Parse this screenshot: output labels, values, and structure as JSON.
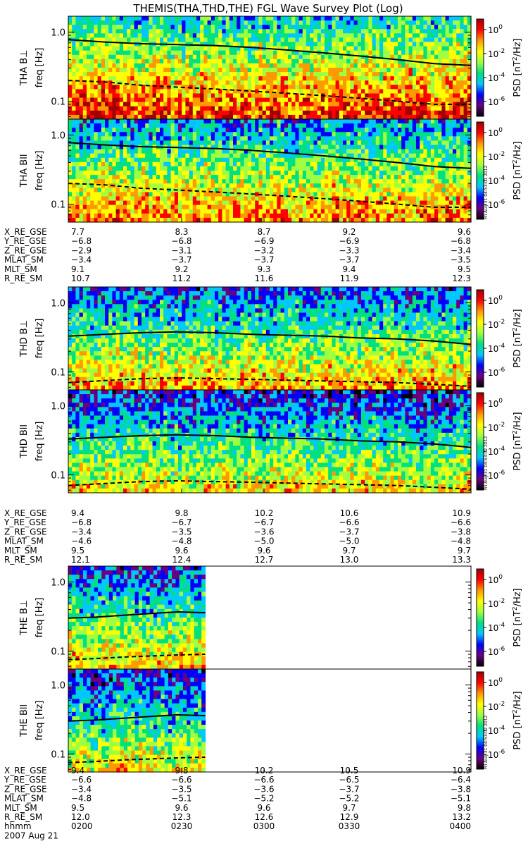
{
  "chart_data": {
    "type": "heatmap",
    "title": "THEMIS(THA,THD,THE) FGL Wave Survey Plot (Log)",
    "date_label": "2007 Aug 21",
    "freq_axis": {
      "label": "freq [Hz]",
      "scale": "log",
      "ticks": [
        "1.0",
        "0.1"
      ],
      "range_hz": [
        0.055,
        1.7
      ]
    },
    "colorbar": {
      "label": "PSD [nT²/Hz]",
      "label_parts": [
        "PSD [nT",
        "2",
        "/Hz]"
      ],
      "scale": "log",
      "ticks": [
        {
          "base": "10",
          "exp": "0"
        },
        {
          "base": "10",
          "exp": "-2"
        },
        {
          "base": "10",
          "exp": "-4"
        },
        {
          "base": "10",
          "exp": "-6"
        }
      ],
      "colors": [
        "#000000",
        "#6a0080",
        "#0000ff",
        "#00c8ff",
        "#00e080",
        "#a0ff40",
        "#ffff00",
        "#ff9900",
        "#ff0000",
        "#a00000"
      ],
      "stamps": [
        "Fri Aug 31 04:53:01 2012",
        "Fri Aug 31 04:53:02 2012",
        "Fri Aug 31 04:53:02 2012"
      ]
    },
    "time_axis": {
      "hhmm_label": "hhmm",
      "hhmm": [
        "0200",
        "0230",
        "0300",
        "0330",
        "0400"
      ]
    },
    "probes": [
      {
        "panels": [
          {
            "label_main": "THA B",
            "label_sym": "⊥",
            "intensity": 0.72,
            "solid_line_hz": [
              0.78,
              0.72,
              0.68,
              0.66,
              0.64,
              0.6,
              0.55,
              0.5,
              0.45,
              0.4,
              0.35,
              0.33
            ],
            "dashed_line_hz": [
              0.2,
              0.19,
              0.17,
              0.16,
              0.15,
              0.14,
              0.13,
              0.12,
              0.11,
              0.1,
              0.09,
              0.09
            ]
          },
          {
            "label_main": "THA B",
            "label_sym": "ll",
            "intensity": 0.58,
            "solid_line_hz": [
              0.78,
              0.72,
              0.68,
              0.66,
              0.64,
              0.6,
              0.55,
              0.5,
              0.45,
              0.4,
              0.35,
              0.33
            ],
            "dashed_line_hz": [
              0.2,
              0.19,
              0.17,
              0.16,
              0.15,
              0.14,
              0.13,
              0.12,
              0.11,
              0.1,
              0.09,
              0.09
            ]
          }
        ],
        "ephemeris": [
          {
            "name": "X_RE_GSE",
            "values": [
              "7.7",
              "8.3",
              "8.7",
              "9.2",
              "9.6"
            ]
          },
          {
            "name": "Y_RE_GSE",
            "values": [
              "−6.8",
              "−6.8",
              "−6.9",
              "−6.9",
              "−6.8"
            ]
          },
          {
            "name": "Z_RE_GSE",
            "values": [
              "−2.9",
              "−3.1",
              "−3.2",
              "−3.3",
              "−3.4"
            ]
          },
          {
            "name": "MLAT_SM",
            "values": [
              "−3.4",
              "−3.7",
              "−3.7",
              "−3.7",
              "−3.5"
            ]
          },
          {
            "name": "MLT_SM",
            "values": [
              "9.1",
              "9.2",
              "9.3",
              "9.4",
              "9.5"
            ]
          },
          {
            "name": "R_RE_SM",
            "values": [
              "10.7",
              "11.2",
              "11.6",
              "11.9",
              "12.3"
            ]
          }
        ]
      },
      {
        "panels": [
          {
            "label_main": "THD B",
            "label_sym": "⊥",
            "intensity": 0.5,
            "solid_line_hz": [
              0.33,
              0.35,
              0.37,
              0.38,
              0.37,
              0.35,
              0.34,
              0.33,
              0.31,
              0.3,
              0.28,
              0.25
            ],
            "dashed_line_hz": [
              0.07,
              0.075,
              0.08,
              0.082,
              0.08,
              0.078,
              0.076,
              0.074,
              0.072,
              0.07,
              0.066,
              0.062
            ]
          },
          {
            "label_main": "THD B",
            "label_sym": "ll",
            "intensity": 0.4,
            "solid_line_hz": [
              0.33,
              0.35,
              0.37,
              0.38,
              0.37,
              0.35,
              0.34,
              0.33,
              0.31,
              0.3,
              0.28,
              0.25
            ],
            "dashed_line_hz": [
              0.07,
              0.075,
              0.08,
              0.082,
              0.08,
              0.078,
              0.076,
              0.074,
              0.072,
              0.07,
              0.066,
              0.062
            ]
          }
        ],
        "ephemeris": [
          {
            "name": "X_RE_GSE",
            "values": [
              "9.4",
              "9.8",
              "10.2",
              "10.6",
              "10.9"
            ]
          },
          {
            "name": "Y_RE_GSE",
            "values": [
              "−6.8",
              "−6.7",
              "−6.7",
              "−6.6",
              "−6.6"
            ]
          },
          {
            "name": "Z_RE_GSE",
            "values": [
              "−3.4",
              "−3.5",
              "−3.6",
              "−3.7",
              "−3.8"
            ]
          },
          {
            "name": "MLAT_SM",
            "values": [
              "−4.6",
              "−4.8",
              "−5.0",
              "−5.0",
              "−4.8"
            ]
          },
          {
            "name": "MLT_SM",
            "values": [
              "9.5",
              "9.6",
              "9.6",
              "9.7",
              "9.7"
            ]
          },
          {
            "name": "R_RE_SM",
            "values": [
              "12.1",
              "12.4",
              "12.7",
              "13.0",
              "13.3"
            ]
          }
        ]
      },
      {
        "data_end_fraction": 0.34,
        "panels": [
          {
            "label_main": "THE B",
            "label_sym": "⊥",
            "intensity": 0.45,
            "solid_line_hz": [
              0.3,
              0.31,
              0.33,
              0.35,
              0.37,
              0.36
            ],
            "dashed_line_hz": [
              0.075,
              0.078,
              0.082,
              0.085,
              0.088,
              0.09
            ]
          },
          {
            "label_main": "THE B",
            "label_sym": "ll",
            "intensity": 0.38,
            "solid_line_hz": [
              0.3,
              0.31,
              0.33,
              0.35,
              0.37,
              0.36
            ],
            "dashed_line_hz": [
              0.075,
              0.078,
              0.082,
              0.085,
              0.088,
              0.09
            ]
          }
        ],
        "ephemeris": [
          {
            "name": "X_RE_GSE",
            "values": [
              "9.4",
              "9.8",
              "10.2",
              "10.5",
              "10.9"
            ]
          },
          {
            "name": "Y_RE_GSE",
            "values": [
              "−6.6",
              "−6.6",
              "−6.6",
              "−6.5",
              "−6.4"
            ]
          },
          {
            "name": "Z_RE_GSE",
            "values": [
              "−3.4",
              "−3.5",
              "−3.6",
              "−3.7",
              "−3.8"
            ]
          },
          {
            "name": "MLAT_SM",
            "values": [
              "−4.8",
              "−5.1",
              "−5.2",
              "−5.2",
              "−5.1"
            ]
          },
          {
            "name": "MLT_SM",
            "values": [
              "9.5",
              "9.6",
              "9.6",
              "9.7",
              "9.8"
            ]
          },
          {
            "name": "R_RE_SM",
            "values": [
              "12.0",
              "12.3",
              "12.6",
              "12.9",
              "13.2"
            ]
          }
        ]
      }
    ]
  }
}
